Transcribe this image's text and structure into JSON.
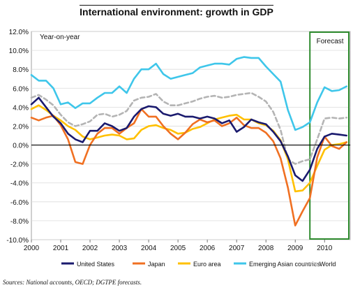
{
  "chart_data": {
    "type": "line",
    "title": "International environment: growth in GDP",
    "annotation": "Year-on-year",
    "forecast_label": "Forecast",
    "source": "Sources: National accounts, OECD; DGTPE forecasts.",
    "ylim": [
      -10,
      12
    ],
    "xlim": [
      2000,
      2010.875
    ],
    "y_ticks": [
      12,
      10,
      8,
      6,
      4,
      2,
      0,
      -2,
      -4,
      -6,
      -8,
      -10
    ],
    "y_tick_labels": [
      "12.0%",
      "10.0%",
      "8.0%",
      "6.0%",
      "4.0%",
      "2.0%",
      "0.0%",
      "-2.0%",
      "-4.0%",
      "-6.0%",
      "-8.0%",
      "-10.0%"
    ],
    "x_ticks": [
      2000,
      2001,
      2002,
      2003,
      2004,
      2005,
      2006,
      2007,
      2008,
      2009,
      2010
    ],
    "x_tick_labels": [
      "2000",
      "2001",
      "2002",
      "2003",
      "2004",
      "2005",
      "2006",
      "2007",
      "2008",
      "2009",
      "2010"
    ],
    "forecast_range": [
      2009.5,
      2010.875
    ],
    "grid": "horizontal",
    "legend_position": "bottom",
    "x": [
      2000.0,
      2000.25,
      2000.5,
      2000.75,
      2001.0,
      2001.25,
      2001.5,
      2001.75,
      2002.0,
      2002.25,
      2002.5,
      2002.75,
      2003.0,
      2003.25,
      2003.5,
      2003.75,
      2004.0,
      2004.25,
      2004.5,
      2004.75,
      2005.0,
      2005.25,
      2005.5,
      2005.75,
      2006.0,
      2006.25,
      2006.5,
      2006.75,
      2007.0,
      2007.25,
      2007.5,
      2007.75,
      2008.0,
      2008.25,
      2008.5,
      2008.75,
      2009.0,
      2009.25,
      2009.5,
      2009.75,
      2010.0,
      2010.25,
      2010.5,
      2010.75
    ],
    "series": [
      {
        "name": "United States",
        "color": "#1a1a6e",
        "dashed": false,
        "values": [
          4.3,
          5.0,
          4.0,
          3.0,
          2.3,
          1.2,
          0.6,
          0.3,
          1.5,
          1.5,
          2.3,
          2.0,
          1.5,
          1.8,
          3.0,
          3.8,
          4.1,
          4.0,
          3.3,
          3.1,
          3.3,
          3.0,
          3.0,
          2.8,
          3.0,
          2.8,
          2.3,
          2.6,
          1.4,
          1.9,
          2.7,
          2.4,
          2.2,
          1.4,
          0.4,
          -1.2,
          -3.2,
          -3.8,
          -2.6,
          -0.4,
          0.9,
          1.2,
          1.1,
          1.0
        ]
      },
      {
        "name": "Japan",
        "color": "#f07022",
        "dashed": false,
        "values": [
          2.9,
          2.6,
          2.9,
          3.1,
          2.1,
          0.6,
          -1.8,
          -2.0,
          0.0,
          1.2,
          1.8,
          1.8,
          1.2,
          1.8,
          2.3,
          3.8,
          3.0,
          3.0,
          2.0,
          1.2,
          0.6,
          1.3,
          2.2,
          2.7,
          2.4,
          2.6,
          2.0,
          2.3,
          2.9,
          2.1,
          1.8,
          1.8,
          1.3,
          0.4,
          -1.4,
          -4.5,
          -8.5,
          -7.0,
          -5.6,
          -1.3,
          0.9,
          -0.1,
          -0.4,
          0.3
        ]
      },
      {
        "name": "Euro area",
        "color": "#ffc000",
        "dashed": false,
        "values": [
          3.8,
          4.2,
          3.7,
          3.1,
          2.6,
          2.0,
          1.6,
          0.9,
          0.6,
          0.8,
          1.0,
          1.1,
          1.0,
          0.6,
          0.7,
          1.6,
          2.0,
          2.1,
          1.8,
          1.6,
          1.2,
          1.3,
          1.7,
          1.9,
          2.3,
          2.7,
          2.9,
          3.1,
          3.2,
          2.7,
          2.7,
          2.3,
          2.1,
          1.5,
          0.5,
          -1.5,
          -4.9,
          -4.8,
          -4.0,
          -2.2,
          -0.5,
          0.0,
          0.1,
          0.3
        ]
      },
      {
        "name": "Emerging Asian countries",
        "color": "#3ec6ea",
        "dashed": false,
        "values": [
          7.4,
          6.8,
          6.8,
          6.0,
          4.3,
          4.5,
          3.9,
          4.4,
          4.4,
          5.0,
          5.5,
          5.5,
          6.2,
          5.5,
          7.0,
          8.0,
          8.0,
          8.6,
          7.5,
          7.0,
          7.2,
          7.4,
          7.6,
          8.2,
          8.4,
          8.6,
          8.6,
          8.5,
          9.1,
          9.3,
          9.2,
          9.2,
          8.3,
          7.5,
          6.7,
          3.7,
          1.6,
          1.9,
          2.4,
          4.5,
          6.1,
          5.7,
          5.8,
          6.2
        ]
      },
      {
        "name": "World",
        "color": "#b4b4b4",
        "dashed": true,
        "values": [
          5.0,
          5.3,
          4.8,
          4.2,
          3.2,
          2.4,
          2.0,
          2.2,
          2.5,
          3.2,
          3.3,
          3.0,
          3.2,
          3.6,
          4.7,
          5.0,
          5.1,
          5.4,
          4.6,
          4.2,
          4.2,
          4.4,
          4.6,
          4.9,
          5.1,
          5.2,
          5.0,
          5.1,
          5.3,
          5.4,
          5.5,
          5.1,
          4.6,
          3.5,
          1.6,
          -1.5,
          -2.0,
          -1.7,
          -1.5,
          0.6,
          2.8,
          2.9,
          2.8,
          2.9
        ]
      }
    ]
  }
}
